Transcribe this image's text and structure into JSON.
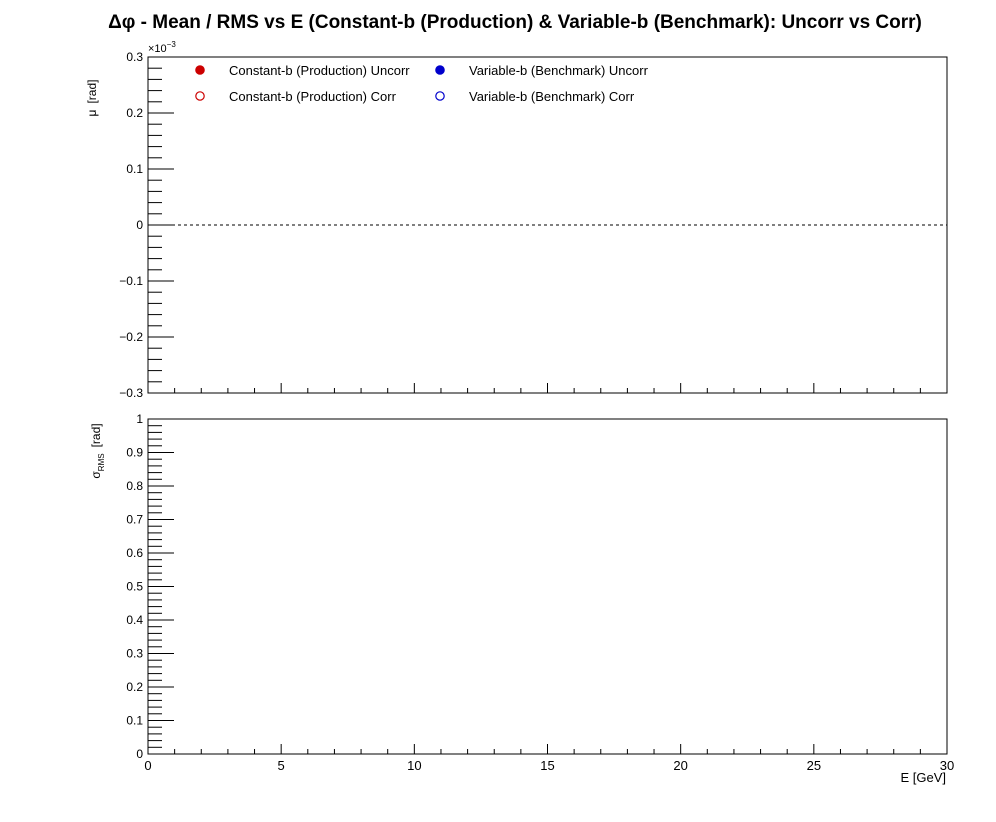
{
  "chart_data": [
    {
      "type": "scatter",
      "panel": "mean",
      "title": "Δφ  -  Mean / RMS vs E  (Constant-b (Production) & Variable-b (Benchmark): Uncorr vs Corr)",
      "xlabel": "",
      "ylabel_main": "μ",
      "ylabel_unit": "[rad]",
      "y_exponent_label": "×10",
      "y_exponent_power": "−3",
      "xlim": [
        0,
        30
      ],
      "ylim": [
        -0.3,
        0.3
      ],
      "y_ticks": [
        {
          "value": -0.3,
          "label": "−0.3"
        },
        {
          "value": -0.2,
          "label": "−0.2"
        },
        {
          "value": -0.1,
          "label": "−0.1"
        },
        {
          "value": 0,
          "label": "0"
        },
        {
          "value": 0.1,
          "label": "0.1"
        },
        {
          "value": 0.2,
          "label": "0.2"
        },
        {
          "value": 0.3,
          "label": "0.3"
        }
      ],
      "reference_line_y": 0,
      "legend_placement": "top-left",
      "series": [
        {
          "name": "Constant-b (Production) Uncorr",
          "marker": "filled-circle",
          "color": "#cc0000",
          "x": [],
          "y": []
        },
        {
          "name": "Variable-b (Benchmark) Uncorr",
          "marker": "filled-circle",
          "color": "#0000cc",
          "x": [],
          "y": []
        },
        {
          "name": "Constant-b (Production) Corr",
          "marker": "open-circle",
          "color": "#cc0000",
          "x": [],
          "y": []
        },
        {
          "name": "Variable-b (Benchmark) Corr",
          "marker": "open-circle",
          "color": "#0000cc",
          "x": [],
          "y": []
        }
      ]
    },
    {
      "type": "scatter",
      "panel": "rms",
      "xlabel": "E  [GeV]",
      "ylabel_main": "σ",
      "ylabel_sub": "RMS",
      "ylabel_unit": "[rad]",
      "xlim": [
        0,
        30
      ],
      "ylim": [
        0,
        1
      ],
      "x_ticks": [
        {
          "value": 0,
          "label": "0"
        },
        {
          "value": 5,
          "label": "5"
        },
        {
          "value": 10,
          "label": "10"
        },
        {
          "value": 15,
          "label": "15"
        },
        {
          "value": 20,
          "label": "20"
        },
        {
          "value": 25,
          "label": "25"
        },
        {
          "value": 30,
          "label": "30"
        }
      ],
      "y_ticks": [
        {
          "value": 0,
          "label": "0"
        },
        {
          "value": 0.1,
          "label": "0.1"
        },
        {
          "value": 0.2,
          "label": "0.2"
        },
        {
          "value": 0.3,
          "label": "0.3"
        },
        {
          "value": 0.4,
          "label": "0.4"
        },
        {
          "value": 0.5,
          "label": "0.5"
        },
        {
          "value": 0.6,
          "label": "0.6"
        },
        {
          "value": 0.7,
          "label": "0.7"
        },
        {
          "value": 0.8,
          "label": "0.8"
        },
        {
          "value": 0.9,
          "label": "0.9"
        },
        {
          "value": 1,
          "label": "1"
        }
      ],
      "series": [
        {
          "name": "Constant-b (Production) Uncorr",
          "marker": "filled-circle",
          "color": "#cc0000",
          "x": [],
          "y": []
        },
        {
          "name": "Variable-b (Benchmark) Uncorr",
          "marker": "filled-circle",
          "color": "#0000cc",
          "x": [],
          "y": []
        },
        {
          "name": "Constant-b (Production) Corr",
          "marker": "open-circle",
          "color": "#cc0000",
          "x": [],
          "y": []
        },
        {
          "name": "Variable-b (Benchmark) Corr",
          "marker": "open-circle",
          "color": "#0000cc",
          "x": [],
          "y": []
        }
      ]
    }
  ]
}
